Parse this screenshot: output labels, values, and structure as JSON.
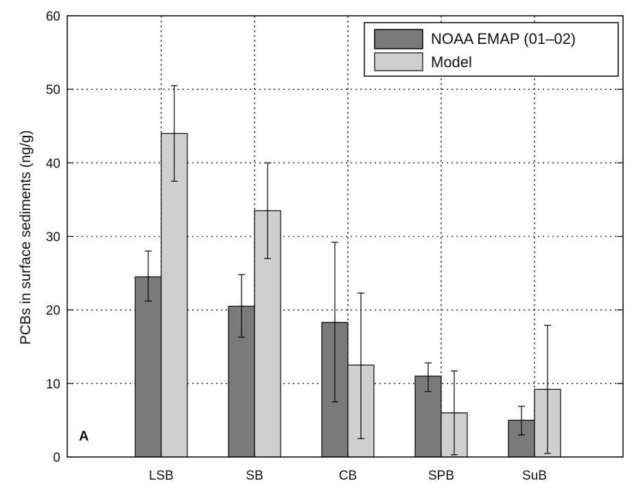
{
  "chart_data": {
    "type": "bar",
    "panel_label": "A",
    "ylabel": "PCBs in surface sediments (ng/g)",
    "xlabel": "",
    "ylim": [
      0,
      60
    ],
    "yticks": [
      0,
      10,
      20,
      30,
      40,
      50,
      60
    ],
    "categories": [
      "LSB",
      "SB",
      "CB",
      "SPB",
      "SuB"
    ],
    "grid": true,
    "legend_position": "top-right",
    "series": [
      {
        "name": "NOAA EMAP (01–02)",
        "color": "#7a7a7a",
        "values": [
          24.5,
          20.5,
          18.3,
          11.0,
          5.0
        ],
        "err_low": [
          21.2,
          16.3,
          7.5,
          8.9,
          3.0
        ],
        "err_high": [
          28.0,
          24.8,
          29.2,
          12.8,
          6.9
        ]
      },
      {
        "name": "Model",
        "color": "#cfcfcf",
        "values": [
          44.0,
          33.5,
          12.5,
          6.0,
          9.2
        ],
        "err_low": [
          37.5,
          27.0,
          2.5,
          0.3,
          0.5
        ],
        "err_high": [
          50.5,
          40.0,
          22.3,
          11.7,
          17.9
        ]
      }
    ]
  }
}
